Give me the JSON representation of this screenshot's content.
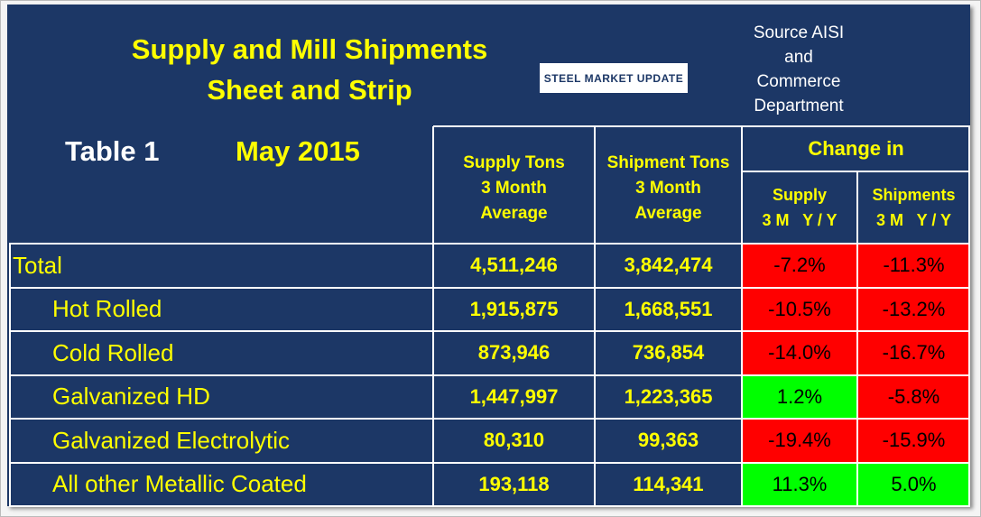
{
  "header": {
    "title_line1": "Supply and Mill Shipments",
    "title_line2": "Sheet and Strip",
    "logo": "STEEL MARKET UPDATE",
    "source": [
      "Source AISI",
      "and",
      "Commerce",
      "Department"
    ],
    "table_label": "Table 1",
    "period": "May 2015"
  },
  "table": {
    "columns": {
      "supply": [
        "Supply Tons",
        "3 Month",
        "Average"
      ],
      "shipments": [
        "Shipment Tons",
        "3 Month",
        "Average"
      ],
      "change": "Change in",
      "supply_change": [
        "Supply",
        "3 M   Y / Y"
      ],
      "shipments_change": [
        "Shipments",
        "3 M   Y / Y"
      ]
    },
    "rows": [
      {
        "label": "Total",
        "supply": "4,511,246",
        "shipments": "3,842,474",
        "supply_change": "-7.2%",
        "shipments_change": "-11.3%",
        "supply_color": "#ff0000",
        "shipments_color": "#ff0000"
      },
      {
        "label": "Hot Rolled",
        "supply": "1,915,875",
        "shipments": "1,668,551",
        "supply_change": "-10.5%",
        "shipments_change": "-13.2%",
        "supply_color": "#ff0000",
        "shipments_color": "#ff0000"
      },
      {
        "label": "Cold Rolled",
        "supply": "873,946",
        "shipments": "736,854",
        "supply_change": "-14.0%",
        "shipments_change": "-16.7%",
        "supply_color": "#ff0000",
        "shipments_color": "#ff0000"
      },
      {
        "label": "Galvanized HD",
        "supply": "1,447,997",
        "shipments": "1,223,365",
        "supply_change": "1.2%",
        "shipments_change": "-5.8%",
        "supply_color": "#00ff00",
        "shipments_color": "#ff0000"
      },
      {
        "label": "Galvanized Electrolytic",
        "supply": "80,310",
        "shipments": "99,363",
        "supply_change": "-19.4%",
        "shipments_change": "-15.9%",
        "supply_color": "#ff0000",
        "shipments_color": "#ff0000"
      },
      {
        "label": "All other Metallic Coated",
        "supply": "193,118",
        "shipments": "114,341",
        "supply_change": "11.3%",
        "shipments_change": "5.0%",
        "supply_color": "#00ff00",
        "shipments_color": "#00ff00"
      }
    ]
  }
}
